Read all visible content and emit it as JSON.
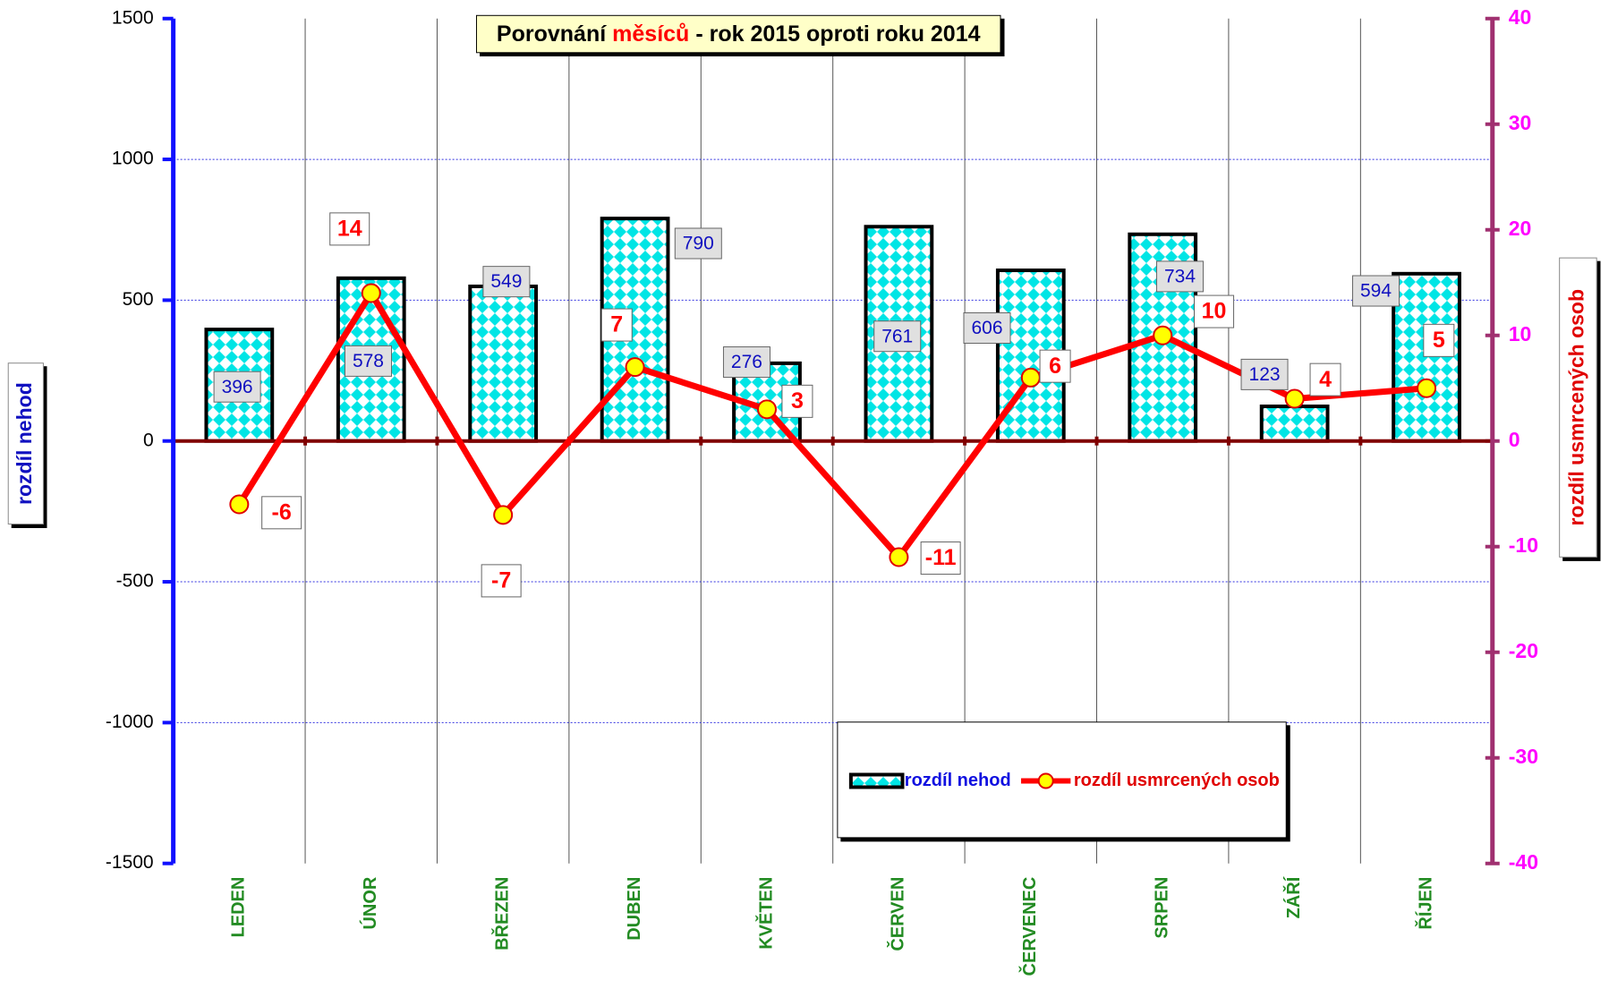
{
  "chart_data": {
    "type": "bar",
    "title_parts": [
      "Porovnání",
      "měsíců",
      "- rok 2015 oproti roku 2014"
    ],
    "y_label": "rozdíl nehod",
    "y2_label": "rozdíl usmrcených osob",
    "categories": [
      "LEDEN",
      "ÚNOR",
      "BŘEZEN",
      "DUBEN",
      "KVĚTEN",
      "ČERVEN",
      "ČERVENEC",
      "SRPEN",
      "ZÁŘÍ",
      "ŘÍJEN"
    ],
    "series": [
      {
        "name": "rozdíl nehod",
        "type": "bar",
        "color": "#00e5e5",
        "values": [
          396,
          578,
          549,
          790,
          276,
          761,
          606,
          734,
          123,
          594
        ]
      },
      {
        "name": "rozdíl usmrcených osob",
        "type": "line",
        "axis": "y2",
        "color": "#ff0000",
        "marker_color": "#ffff00",
        "values": [
          -6,
          14,
          -7,
          7,
          3,
          -11,
          6,
          10,
          4,
          5
        ]
      }
    ],
    "ylim": [
      -1500,
      1500
    ],
    "yticks": [
      -1500,
      -1000,
      -500,
      0,
      500,
      1000,
      1500
    ],
    "y2lim": [
      -40,
      40
    ],
    "y2ticks": [
      -40,
      -30,
      -20,
      -10,
      0,
      10,
      20,
      30,
      40
    ],
    "grid": true,
    "legend": "lower right"
  }
}
